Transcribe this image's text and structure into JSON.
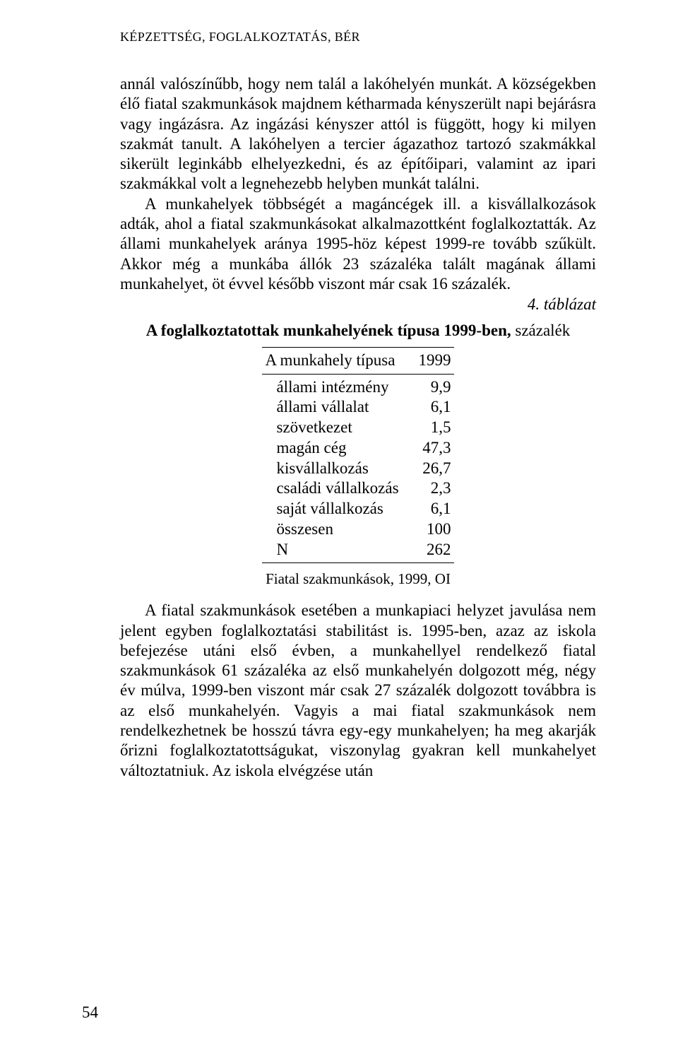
{
  "header": "KÉPZETTSÉG, FOGLALKOZTATÁS, BÉR",
  "paragraphs": {
    "p1": "annál valószínűbb, hogy nem talál a lakóhelyén munkát. A községekben élő fiatal szakmunkások majdnem kétharmada kényszerült napi bejárásra vagy ingázásra. Az ingázási kényszer attól is függött, hogy ki milyen szakmát tanult. A lakóhelyen a tercier ágazathoz tartozó szakmákkal sikerült leginkább elhelyezkedni, és az építőipari, valamint az ipari szakmákkal volt a legnehezebb helyben munkát találni.",
    "p2": "A munkahelyek többségét a magáncégek ill. a kisvállalkozások adták, ahol a fiatal szakmunkásokat alkalmazottként foglalkoztatták. Az állami munkahelyek aránya 1995-höz képest 1999-re tovább szűkült. Akkor még a munkába állók 23 százaléka talált magának állami munkahelyet, öt évvel később viszont már csak 16 százalék.",
    "p3": "A fiatal szakmunkások esetében a munkapiaci helyzet javulása nem jelent egyben foglalkoztatási stabilitást is. 1995-ben, azaz az iskola befejezése utáni első évben, a munkahellyel rendelkező fiatal szakmunkások 61 százaléka az első munkahelyén dolgozott még, négy év múlva, 1999-ben viszont már csak 27 százalék dolgozott továbbra is az első munkahelyén. Vagyis a mai fiatal szakmunkások nem rendelkezhetnek be hosszú távra egy-egy munkahelyen; ha meg akarják őrizni foglalkoztatottságukat, viszonylag gyakran kell munkahelyet változtatniuk. Az iskola elvégzése után"
  },
  "table_ref": "4. táblázat",
  "table_title_bold": "A foglalkoztatottak munkahelyének típusa 1999-ben,",
  "table_title_rest": " százalék",
  "table": {
    "col0": "A munkahely típusa",
    "col1": "1999",
    "rows": [
      {
        "label": "állami intézmény",
        "value": "9,9"
      },
      {
        "label": "állami vállalat",
        "value": "6,1"
      },
      {
        "label": "szövetkezet",
        "value": "1,5"
      },
      {
        "label": "magán cég",
        "value": "47,3"
      },
      {
        "label": "kisvállalkozás",
        "value": "26,7"
      },
      {
        "label": "családi vállalkozás",
        "value": "2,3"
      },
      {
        "label": "saját vállalkozás",
        "value": "6,1"
      },
      {
        "label": "összesen",
        "value": "100"
      },
      {
        "label": "N",
        "value": "262"
      }
    ]
  },
  "source": "Fiatal szakmunkások, 1999, OI",
  "page_number": "54"
}
